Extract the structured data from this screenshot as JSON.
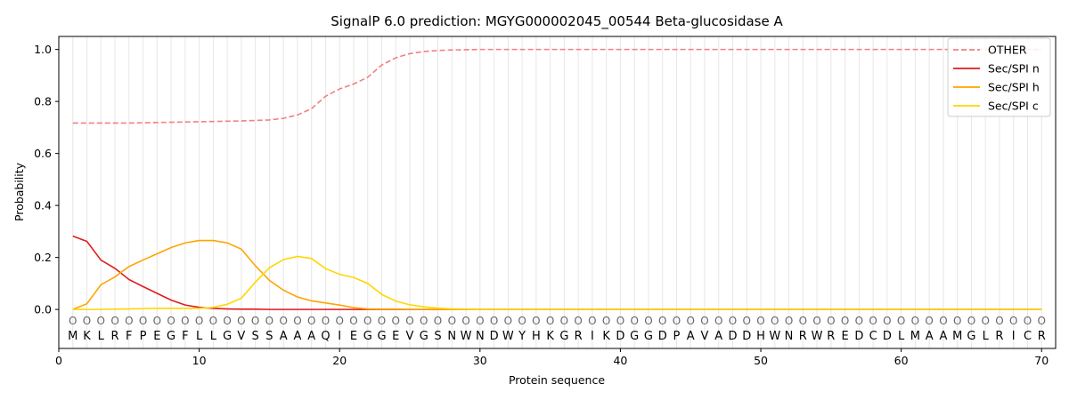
{
  "chart_data": {
    "type": "line",
    "title": "SignalP 6.0 prediction: MGYG000002045_00544 Beta-glucosidase A",
    "xlabel": "Protein sequence",
    "ylabel": "Probability",
    "xlim": [
      0,
      71
    ],
    "ylim": [
      -0.15,
      1.05
    ],
    "x_ticks": [
      0,
      10,
      20,
      30,
      40,
      50,
      60,
      70
    ],
    "y_ticks": [
      0.0,
      0.2,
      0.4,
      0.6,
      0.8,
      1.0
    ],
    "grid": "vertical lines at each residue",
    "legend_position": "top-right",
    "sequence": [
      "M",
      "K",
      "L",
      "R",
      "F",
      "P",
      "E",
      "G",
      "F",
      "L",
      "L",
      "G",
      "V",
      "S",
      "S",
      "A",
      "A",
      "A",
      "Q",
      "I",
      "E",
      "G",
      "G",
      "E",
      "V",
      "G",
      "S",
      "N",
      "W",
      "N",
      "D",
      "W",
      "Y",
      "H",
      "K",
      "G",
      "R",
      "I",
      "K",
      "D",
      "G",
      "G",
      "D",
      "P",
      "A",
      "V",
      "A",
      "D",
      "D",
      "H",
      "W",
      "N",
      "R",
      "W",
      "R",
      "E",
      "D",
      "C",
      "D",
      "L",
      "M",
      "A",
      "A",
      "M",
      "G",
      "L",
      "R",
      "I",
      "C",
      "R"
    ],
    "region_label": "O",
    "x": [
      1,
      2,
      3,
      4,
      5,
      6,
      7,
      8,
      9,
      10,
      11,
      12,
      13,
      14,
      15,
      16,
      17,
      18,
      19,
      20,
      21,
      22,
      23,
      24,
      25,
      26,
      27,
      28,
      29,
      30,
      31,
      32,
      33,
      34,
      35,
      36,
      37,
      38,
      39,
      40,
      41,
      42,
      43,
      44,
      45,
      46,
      47,
      48,
      49,
      50,
      51,
      52,
      53,
      54,
      55,
      56,
      57,
      58,
      59,
      60,
      61,
      62,
      63,
      64,
      65,
      66,
      67,
      68,
      69,
      70
    ],
    "series": [
      {
        "name": "OTHER",
        "color": "#f08080",
        "style": "dashed",
        "values": [
          0.717,
          0.717,
          0.717,
          0.717,
          0.717,
          0.718,
          0.719,
          0.72,
          0.721,
          0.722,
          0.723,
          0.724,
          0.725,
          0.727,
          0.729,
          0.735,
          0.748,
          0.772,
          0.82,
          0.848,
          0.867,
          0.893,
          0.94,
          0.968,
          0.984,
          0.992,
          0.996,
          0.998,
          0.999,
          1.0,
          1.0,
          1.0,
          1.0,
          1.0,
          1.0,
          1.0,
          1.0,
          1.0,
          1.0,
          1.0,
          1.0,
          1.0,
          1.0,
          1.0,
          1.0,
          1.0,
          1.0,
          1.0,
          1.0,
          1.0,
          1.0,
          1.0,
          1.0,
          1.0,
          1.0,
          1.0,
          1.0,
          1.0,
          1.0,
          1.0,
          1.0,
          1.0,
          1.0,
          1.0,
          1.0,
          1.0,
          1.0,
          1.0,
          1.0,
          1.0
        ]
      },
      {
        "name": "Sec/SPI n",
        "color": "#e31a1c",
        "style": "solid",
        "values": [
          0.282,
          0.262,
          0.19,
          0.158,
          0.115,
          0.088,
          0.062,
          0.036,
          0.017,
          0.008,
          0.004,
          0.002,
          0.001,
          0.001,
          0.0,
          0.0,
          0.0,
          0.0,
          0.0,
          0.0,
          0.0,
          0.0,
          0.0,
          0.0,
          0.0,
          0.0,
          0.0,
          0.0,
          0.0,
          0.0,
          0.0,
          0.0,
          0.0,
          0.0,
          0.0,
          0.0,
          0.0,
          0.0,
          0.0,
          0.0,
          0.0,
          0.0,
          0.0,
          0.0,
          0.0,
          0.0,
          0.0,
          0.0,
          0.0,
          0.0,
          0.0,
          0.0,
          0.0,
          0.0,
          0.0,
          0.0,
          0.0,
          0.0,
          0.0,
          0.0,
          0.0,
          0.0,
          0.0,
          0.0,
          0.0,
          0.0,
          0.0,
          0.0,
          0.0,
          0.0
        ]
      },
      {
        "name": "Sec/SPI h",
        "color": "#ffa500",
        "style": "solid",
        "values": [
          0.0,
          0.022,
          0.095,
          0.125,
          0.165,
          0.19,
          0.214,
          0.238,
          0.256,
          0.265,
          0.265,
          0.256,
          0.232,
          0.168,
          0.112,
          0.074,
          0.048,
          0.033,
          0.025,
          0.017,
          0.007,
          0.002,
          0.001,
          0.001,
          0.0,
          0.0,
          0.0,
          0.0,
          0.0,
          0.0,
          0.0,
          0.0,
          0.0,
          0.0,
          0.0,
          0.0,
          0.0,
          0.0,
          0.0,
          0.0,
          0.0,
          0.0,
          0.0,
          0.0,
          0.0,
          0.0,
          0.0,
          0.0,
          0.0,
          0.0,
          0.0,
          0.0,
          0.0,
          0.0,
          0.0,
          0.0,
          0.0,
          0.0,
          0.0,
          0.0,
          0.0,
          0.0,
          0.0,
          0.0,
          0.0,
          0.0,
          0.0,
          0.0,
          0.0,
          0.0
        ]
      },
      {
        "name": "Sec/SPI c",
        "color": "#ffd700",
        "style": "solid",
        "values": [
          0.0,
          0.0,
          0.0,
          0.001,
          0.002,
          0.003,
          0.004,
          0.004,
          0.004,
          0.004,
          0.008,
          0.02,
          0.043,
          0.105,
          0.16,
          0.192,
          0.204,
          0.196,
          0.157,
          0.135,
          0.123,
          0.1,
          0.058,
          0.032,
          0.018,
          0.01,
          0.005,
          0.002,
          0.001,
          0.0,
          0.0,
          0.0,
          0.0,
          0.0,
          0.0,
          0.0,
          0.0,
          0.0,
          0.0,
          0.0,
          0.0,
          0.0,
          0.0,
          0.0,
          0.0,
          0.0,
          0.0,
          0.0,
          0.0,
          0.0,
          0.0,
          0.0,
          0.0,
          0.0,
          0.0,
          0.0,
          0.0,
          0.0,
          0.0,
          0.0,
          0.0,
          0.0,
          0.0,
          0.0,
          0.0,
          0.0,
          0.0,
          0.0,
          0.0,
          0.0
        ]
      }
    ]
  }
}
